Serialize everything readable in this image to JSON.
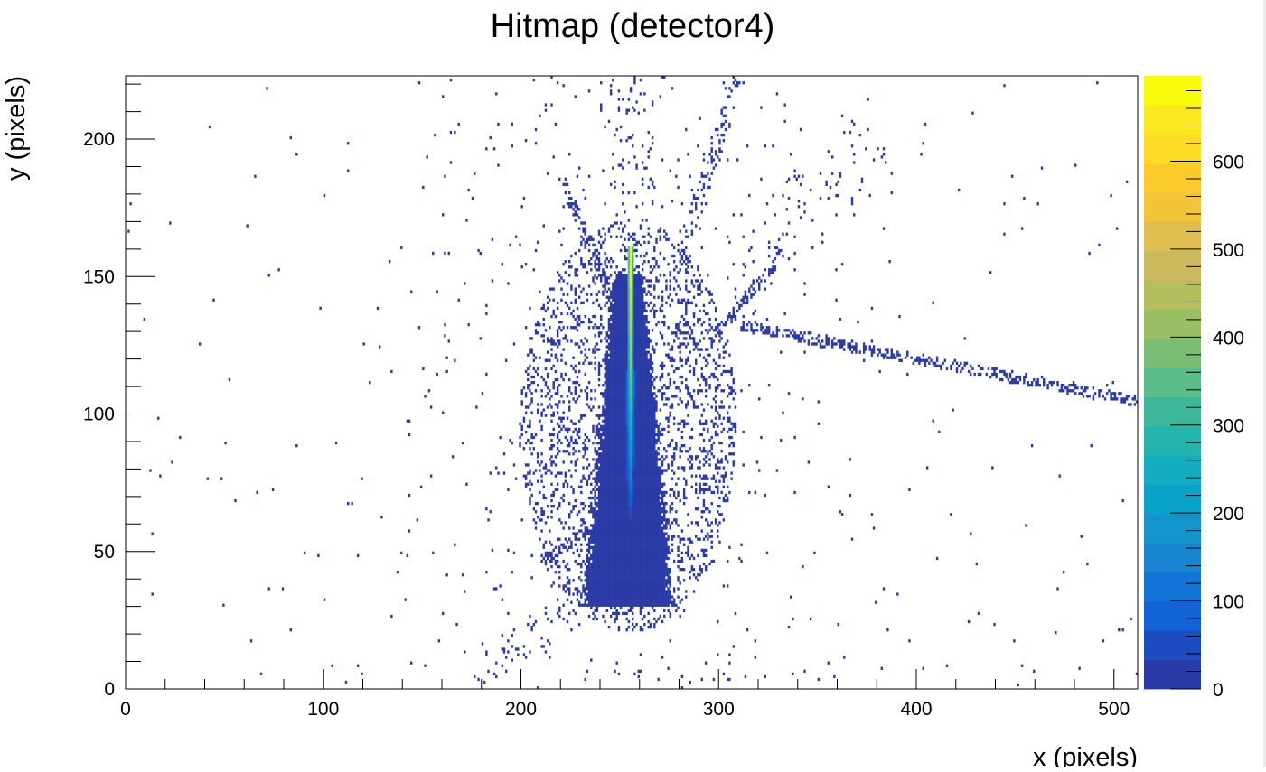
{
  "chart_data": {
    "type": "heatmap",
    "title": "Hitmap (detector4)",
    "xlabel": "x (pixels)",
    "ylabel": "y (pixels)",
    "xlim": [
      0,
      512
    ],
    "ylim": [
      0,
      223
    ],
    "x_ticks": [
      0,
      100,
      200,
      300,
      400,
      500
    ],
    "y_ticks": [
      0,
      50,
      100,
      150,
      200
    ],
    "z_ticks": [
      0,
      100,
      200,
      300,
      400,
      500,
      600
    ],
    "zlim": [
      0,
      697
    ],
    "palette": [
      "#2a3aa6",
      "#1e4cc0",
      "#1462d8",
      "#1274d6",
      "#1784cf",
      "#1394cb",
      "#09a2c8",
      "#12aebf",
      "#23b4ad",
      "#3cb899",
      "#5abc86",
      "#7abe76",
      "#99bf66",
      "#b4be5d",
      "#cbb95e",
      "#dfbe4f",
      "#f1c43a",
      "#fbcb2e",
      "#fedc25",
      "#fbe81f",
      "#f9fb0e"
    ],
    "features": {
      "central_core": {
        "x_range": [
          224,
          284
        ],
        "y_range": [
          30,
          150
        ],
        "value": 10
      },
      "hot_column": {
        "x": 255,
        "y_range": [
          62,
          160
        ],
        "peak_value": 697,
        "peak_y": 155
      },
      "track_right": {
        "from": [
          310,
          132
        ],
        "to": [
          512,
          104
        ],
        "value": 18
      },
      "track_upper_right": {
        "from": [
          298,
          128
        ],
        "to": [
          332,
          158
        ],
        "value": 14
      },
      "track_upper_left": {
        "from": [
          252,
          130
        ],
        "to": [
          220,
          186
        ],
        "value": 12
      },
      "track_upper_mid": {
        "from": [
          272,
          140
        ],
        "to": [
          310,
          222
        ],
        "value": 8
      },
      "track_lower_left": {
        "from": [
          235,
          58
        ],
        "to": [
          210,
          46
        ],
        "value": 10
      },
      "noise_level": 1
    }
  }
}
